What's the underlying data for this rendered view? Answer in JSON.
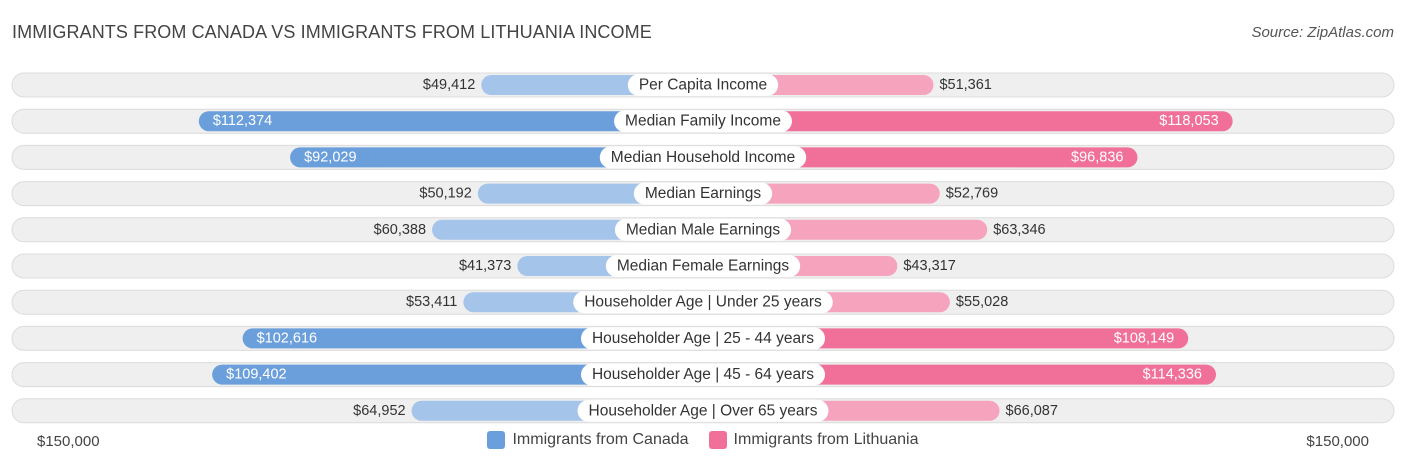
{
  "header": {
    "title": "IMMIGRANTS FROM CANADA VS IMMIGRANTS FROM LITHUANIA INCOME",
    "source": "Source: ZipAtlas.com"
  },
  "axis": {
    "left_label": "$150,000",
    "right_label": "$150,000"
  },
  "legend": {
    "left": "Immigrants from Canada",
    "right": "Immigrants from Lithuania"
  },
  "colors": {
    "left_strong": "#6a9fdc",
    "left_light": "#a4c4ea",
    "right_strong": "#f07099",
    "right_light": "#f6a3bd",
    "row_bg": "#efefef",
    "row_border": "#dcdcdc"
  },
  "chart_data": {
    "type": "bar",
    "orientation": "diverging-horizontal",
    "max": 150000,
    "categories": [
      "Per Capita Income",
      "Median Family Income",
      "Median Household Income",
      "Median Earnings",
      "Median Male Earnings",
      "Median Female Earnings",
      "Householder Age | Under 25 years",
      "Householder Age | 25 - 44 years",
      "Householder Age | 45 - 64 years",
      "Householder Age | Over 65 years"
    ],
    "series": [
      {
        "name": "Immigrants from Canada",
        "values": [
          49412,
          112374,
          92029,
          50192,
          60388,
          41373,
          53411,
          102616,
          109402,
          64952
        ],
        "labels": [
          "$49,412",
          "$112,374",
          "$92,029",
          "$50,192",
          "$60,388",
          "$41,373",
          "$53,411",
          "$102,616",
          "$109,402",
          "$64,952"
        ]
      },
      {
        "name": "Immigrants from Lithuania",
        "values": [
          51361,
          118053,
          96836,
          52769,
          63346,
          43317,
          55028,
          108149,
          114336,
          66087
        ],
        "labels": [
          "$51,361",
          "$118,053",
          "$96,836",
          "$52,769",
          "$63,346",
          "$43,317",
          "$55,028",
          "$108,149",
          "$114,336",
          "$66,087"
        ]
      }
    ]
  }
}
